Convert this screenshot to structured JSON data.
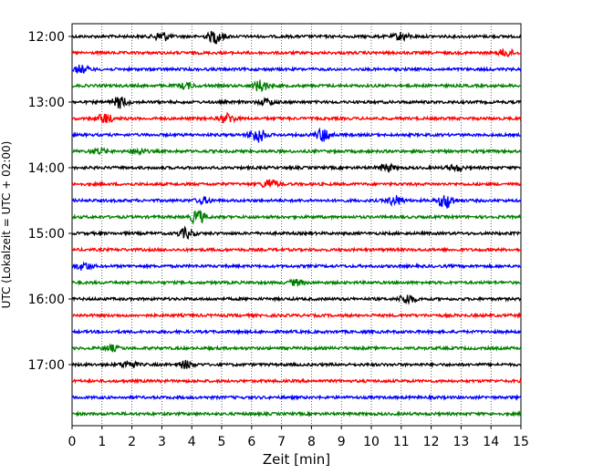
{
  "chart_data": {
    "type": "line",
    "title": "",
    "xlabel": "Zeit  [min]",
    "ylabel": "UTC (Lokalzeit = UTC + 02:00)",
    "xlim": [
      0,
      15
    ],
    "x_ticks": [
      0,
      1,
      2,
      3,
      4,
      5,
      6,
      7,
      8,
      9,
      10,
      11,
      12,
      13,
      14,
      15
    ],
    "y_tick_labels": [
      "12:00",
      "13:00",
      "14:00",
      "15:00",
      "16:00",
      "17:00"
    ],
    "trace_interval_min": 15,
    "grid": "vertical dotted",
    "color_cycle": [
      "#000000",
      "#ff0000",
      "#0000ff",
      "#008000"
    ],
    "series": [
      {
        "start": "12:00",
        "events": [
          [
            3.0,
            5
          ],
          [
            4.8,
            7
          ],
          [
            11.0,
            4
          ]
        ]
      },
      {
        "start": "12:15",
        "events": [
          [
            14.5,
            4
          ]
        ]
      },
      {
        "start": "12:30",
        "events": [
          [
            0.3,
            4
          ]
        ]
      },
      {
        "start": "12:45",
        "events": [
          [
            6.3,
            6
          ],
          [
            3.8,
            3
          ]
        ]
      },
      {
        "start": "13:00",
        "events": [
          [
            1.6,
            6
          ],
          [
            6.5,
            3
          ]
        ]
      },
      {
        "start": "13:15",
        "events": [
          [
            1.1,
            5
          ],
          [
            5.2,
            5
          ]
        ]
      },
      {
        "start": "13:30",
        "events": [
          [
            6.2,
            8
          ],
          [
            8.4,
            7
          ]
        ]
      },
      {
        "start": "13:45",
        "events": [
          [
            0.9,
            3
          ],
          [
            2.2,
            3
          ]
        ]
      },
      {
        "start": "14:00",
        "events": [
          [
            10.5,
            4
          ],
          [
            12.8,
            3
          ]
        ]
      },
      {
        "start": "14:15",
        "events": [
          [
            6.6,
            5
          ]
        ]
      },
      {
        "start": "14:30",
        "events": [
          [
            12.5,
            8
          ],
          [
            10.8,
            5
          ],
          [
            4.4,
            3
          ]
        ]
      },
      {
        "start": "14:45",
        "events": [
          [
            4.2,
            7
          ]
        ]
      },
      {
        "start": "15:00",
        "events": [
          [
            3.8,
            5
          ]
        ]
      },
      {
        "start": "15:15",
        "events": []
      },
      {
        "start": "15:30",
        "events": [
          [
            0.4,
            4
          ]
        ]
      },
      {
        "start": "15:45",
        "events": [
          [
            7.5,
            3
          ]
        ]
      },
      {
        "start": "16:00",
        "events": [
          [
            11.2,
            5
          ]
        ]
      },
      {
        "start": "16:15",
        "events": []
      },
      {
        "start": "16:30",
        "events": []
      },
      {
        "start": "16:45",
        "events": [
          [
            1.3,
            3
          ]
        ]
      },
      {
        "start": "17:00",
        "events": [
          [
            1.9,
            4
          ],
          [
            3.8,
            4
          ]
        ]
      },
      {
        "start": "17:15",
        "events": []
      },
      {
        "start": "17:30",
        "events": []
      },
      {
        "start": "17:45",
        "events": []
      }
    ]
  }
}
